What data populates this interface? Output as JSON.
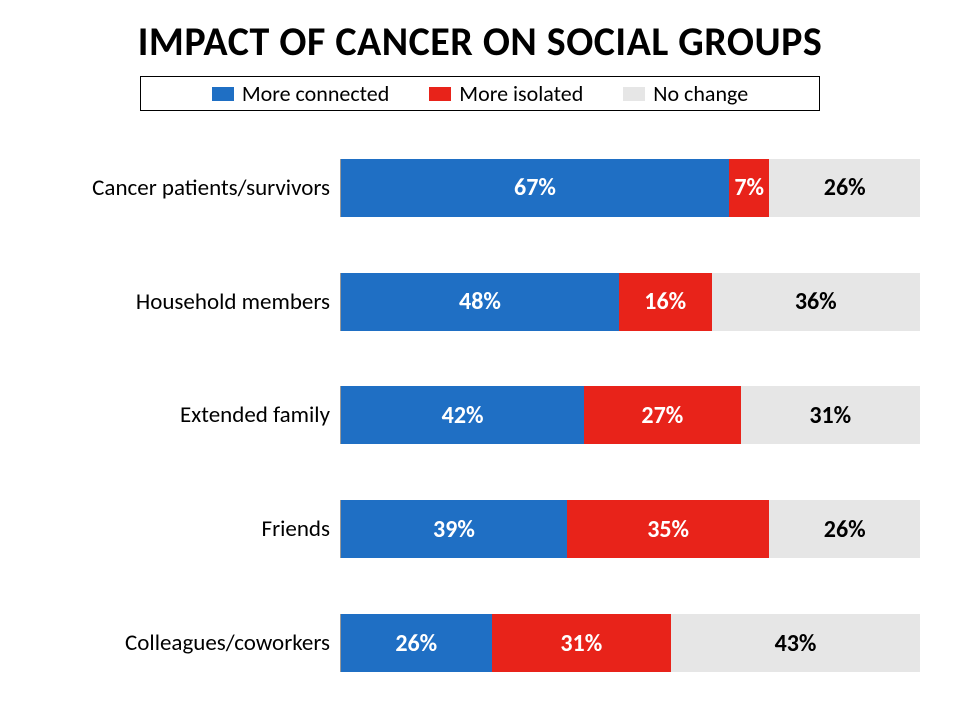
{
  "chart": {
    "type": "stacked-bar-horizontal",
    "title": "IMPACT OF CANCER ON SOCIAL GROUPS",
    "title_fontsize": 40,
    "legend": {
      "items": [
        {
          "label": "More connected",
          "color": "#1f6fc4"
        },
        {
          "label": "More isolated",
          "color": "#e8231a"
        },
        {
          "label": "No change",
          "color": "#e6e6e6"
        }
      ],
      "fontsize": 22,
      "border_color": "#000000"
    },
    "series_colors": {
      "connected": "#1f6fc4",
      "isolated": "#e8231a",
      "nochange": "#e6e6e6"
    },
    "text_colors": {
      "connected": "#ffffff",
      "isolated": "#ffffff",
      "nochange": "#000000"
    },
    "label_fontsize": 23,
    "value_fontsize": 24,
    "categories": [
      {
        "label": "Cancer patients/survivors",
        "connected": 67,
        "isolated": 7,
        "nochange": 26
      },
      {
        "label": "Household members",
        "connected": 48,
        "isolated": 16,
        "nochange": 36
      },
      {
        "label": "Extended family",
        "connected": 42,
        "isolated": 27,
        "nochange": 31
      },
      {
        "label": "Friends",
        "connected": 39,
        "isolated": 35,
        "nochange": 26
      },
      {
        "label": "Colleagues/coworkers",
        "connected": 26,
        "isolated": 31,
        "nochange": 43
      }
    ],
    "background_color": "#ffffff"
  }
}
